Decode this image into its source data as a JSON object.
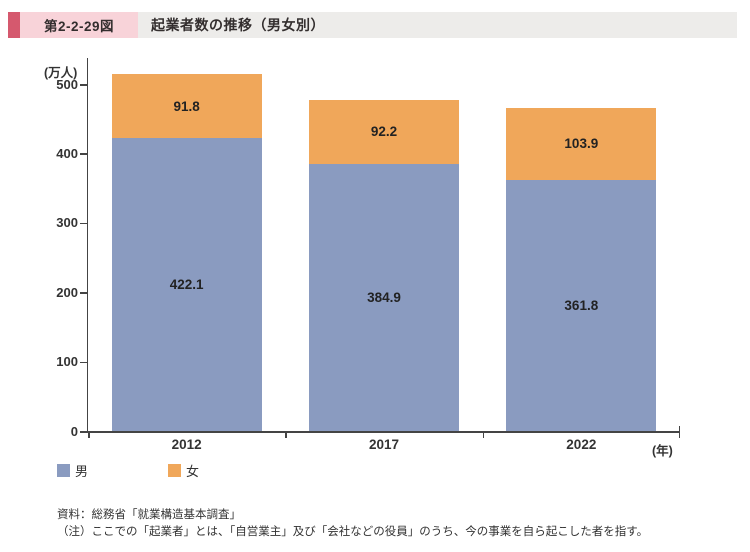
{
  "header": {
    "figure_label": "第2-2-29図",
    "title": "起業者数の推移（男女別）"
  },
  "chart_data": {
    "type": "bar",
    "stacked": true,
    "title": "起業者数の推移（男女別）",
    "unit_label": "(万人)",
    "x_unit_label": "(年)",
    "categories": [
      "2012",
      "2017",
      "2022"
    ],
    "series": [
      {
        "name": "男",
        "color": "#8a9bc0",
        "values": [
          422.1,
          384.9,
          361.8
        ]
      },
      {
        "name": "女",
        "color": "#f0a75a",
        "values": [
          91.8,
          92.2,
          103.9
        ]
      }
    ],
    "totals": [
      513.9,
      477.1,
      465.7
    ],
    "ylim": [
      0,
      530
    ],
    "yticks": [
      0,
      100,
      200,
      300,
      400,
      500
    ],
    "grid": false,
    "legend_position": "bottom-left",
    "value_labels": "inside-center"
  },
  "footer": {
    "source": "資料：総務省「就業構造基本調査」",
    "note": "（注）ここでの「起業者」とは、「自営業主」及び「会社などの役員」のうち、今の事業を自ら起こした者を指す。"
  }
}
